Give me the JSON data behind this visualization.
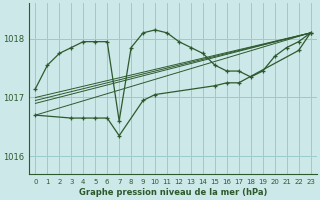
{
  "title": "Graphe pression niveau de la mer (hPa)",
  "bg_color": "#cce8e8",
  "grid_color": "#99cccc",
  "line_color": "#2d5a2d",
  "ylim": [
    1015.7,
    1018.6
  ],
  "yticks": [
    1016,
    1017,
    1018
  ],
  "xlim": [
    -0.5,
    23.5
  ],
  "xticks": [
    0,
    1,
    2,
    3,
    4,
    5,
    6,
    7,
    8,
    9,
    10,
    11,
    12,
    13,
    14,
    15,
    16,
    17,
    18,
    19,
    20,
    21,
    22,
    23
  ],
  "series": [
    {
      "x": [
        0,
        1,
        2,
        3,
        4,
        5,
        6,
        7,
        8,
        9,
        10,
        11,
        12,
        13,
        14,
        15,
        16,
        17,
        18,
        19,
        20,
        21,
        22,
        23
      ],
      "y": [
        1017.15,
        1017.55,
        1017.75,
        1017.85,
        1017.95,
        1017.95,
        1017.95,
        1016.6,
        1017.85,
        1018.1,
        1018.15,
        1018.1,
        1017.95,
        1017.85,
        1017.75,
        1017.55,
        1017.45,
        1017.45,
        1017.35,
        1017.45,
        1017.7,
        1017.85,
        1017.95,
        1018.1
      ]
    },
    {
      "x": [
        0,
        3,
        4,
        5,
        6,
        7,
        9,
        10,
        15,
        16,
        17,
        22,
        23
      ],
      "y": [
        1016.7,
        1016.65,
        1016.65,
        1016.65,
        1016.65,
        1016.35,
        1016.95,
        1017.05,
        1017.2,
        1017.25,
        1017.25,
        1017.8,
        1018.1
      ]
    },
    {
      "x": [
        0,
        23
      ],
      "y": [
        1016.7,
        1018.1
      ]
    },
    {
      "x": [
        0,
        23
      ],
      "y": [
        1016.9,
        1018.1
      ]
    },
    {
      "x": [
        0,
        23
      ],
      "y": [
        1016.95,
        1018.1
      ]
    },
    {
      "x": [
        0,
        23
      ],
      "y": [
        1017.0,
        1018.1
      ]
    }
  ]
}
